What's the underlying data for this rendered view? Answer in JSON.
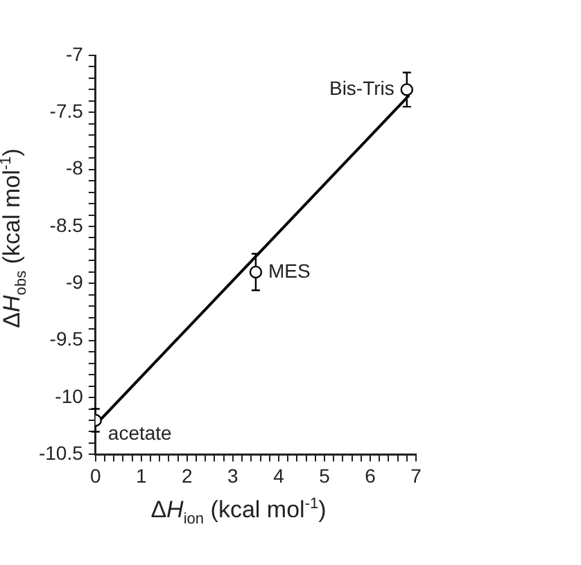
{
  "chart_data": {
    "type": "scatter",
    "xlabel": "ΔH$_{ion}$  (kcal mol$^{-1}$)",
    "ylabel": "ΔH$_{obs}$  (kcal mol$^{-1}$)",
    "xlim": [
      0,
      7
    ],
    "ylim": [
      -10.5,
      -7
    ],
    "xticks": [
      0,
      {
        "value": 0.2,
        "label": null
      },
      {
        "value": 0.4,
        "label": null
      },
      {
        "value": 0.6,
        "label": null
      },
      {
        "value": 0.8,
        "label": null
      },
      1,
      {
        "value": 1.2,
        "label": null
      },
      {
        "value": 1.4,
        "label": null
      },
      {
        "value": 1.6,
        "label": null
      },
      {
        "value": 1.8,
        "label": null
      },
      2,
      {
        "value": 2.2,
        "label": null
      },
      {
        "value": 2.4,
        "label": null
      },
      {
        "value": 2.6,
        "label": null
      },
      {
        "value": 2.8,
        "label": null
      },
      3,
      {
        "value": 3.2,
        "label": null
      },
      {
        "value": 3.4,
        "label": null
      },
      {
        "value": 3.6,
        "label": null
      },
      {
        "value": 3.8,
        "label": null
      },
      4,
      {
        "value": 4.2,
        "label": null
      },
      {
        "value": 4.4,
        "label": null
      },
      {
        "value": 4.6,
        "label": null
      },
      {
        "value": 4.8,
        "label": null
      },
      5,
      {
        "value": 5.2,
        "label": null
      },
      {
        "value": 5.4,
        "label": null
      },
      {
        "value": 5.6,
        "label": null
      },
      {
        "value": 5.8,
        "label": null
      },
      6,
      {
        "value": 6.2,
        "label": null
      },
      {
        "value": 6.4,
        "label": null
      },
      {
        "value": 6.6,
        "label": null
      },
      {
        "value": 6.8,
        "label": null
      },
      7
    ],
    "yticks": [
      -10.5,
      {
        "value": -10.4,
        "label": null
      },
      {
        "value": -10.3,
        "label": null
      },
      {
        "value": -10.2,
        "label": null
      },
      {
        "value": -10.1,
        "label": null
      },
      -10,
      {
        "value": -9.9,
        "label": null
      },
      {
        "value": -9.8,
        "label": null
      },
      {
        "value": -9.7,
        "label": null
      },
      {
        "value": -9.6,
        "label": null
      },
      -9.5,
      {
        "value": -9.4,
        "label": null
      },
      {
        "value": -9.3,
        "label": null
      },
      {
        "value": -9.2,
        "label": null
      },
      {
        "value": -9.1,
        "label": null
      },
      -9,
      {
        "value": -8.9,
        "label": null
      },
      {
        "value": -8.8,
        "label": null
      },
      {
        "value": -8.7,
        "label": null
      },
      {
        "value": -8.6,
        "label": null
      },
      -8.5,
      {
        "value": -8.4,
        "label": null
      },
      {
        "value": -8.3,
        "label": null
      },
      {
        "value": -8.2,
        "label": null
      },
      {
        "value": -8.1,
        "label": null
      },
      -8,
      {
        "value": -7.9,
        "label": null
      },
      {
        "value": -7.8,
        "label": null
      },
      {
        "value": -7.7,
        "label": null
      },
      {
        "value": -7.6,
        "label": null
      },
      -7.5,
      {
        "value": -7.4,
        "label": null
      },
      {
        "value": -7.3,
        "label": null
      },
      {
        "value": -7.2,
        "label": null
      },
      {
        "value": -7.1,
        "label": null
      },
      -7
    ],
    "grid": false,
    "legend": false,
    "marker": "circle",
    "series": [
      {
        "color": "#000000",
        "x": [
          0,
          3.5,
          6.8
        ],
        "values": [
          -10.2,
          -8.9,
          -7.3
        ],
        "errors": [
          0.1,
          0.16,
          0.15
        ]
      },
      {
        "type": "line",
        "color": "#000000",
        "line_style": "solid",
        "marker": "none",
        "x": [
          0,
          6.85
        ],
        "values": [
          -10.24,
          -7.35
        ]
      }
    ],
    "annotations": [
      {
        "text": "acetate",
        "x": 0,
        "y": -10.2
      },
      {
        "text": "MES",
        "x": 3.5,
        "y": -8.9
      },
      {
        "text": "Bis-Tris",
        "x": 6.8,
        "y": -7.3
      }
    ]
  }
}
